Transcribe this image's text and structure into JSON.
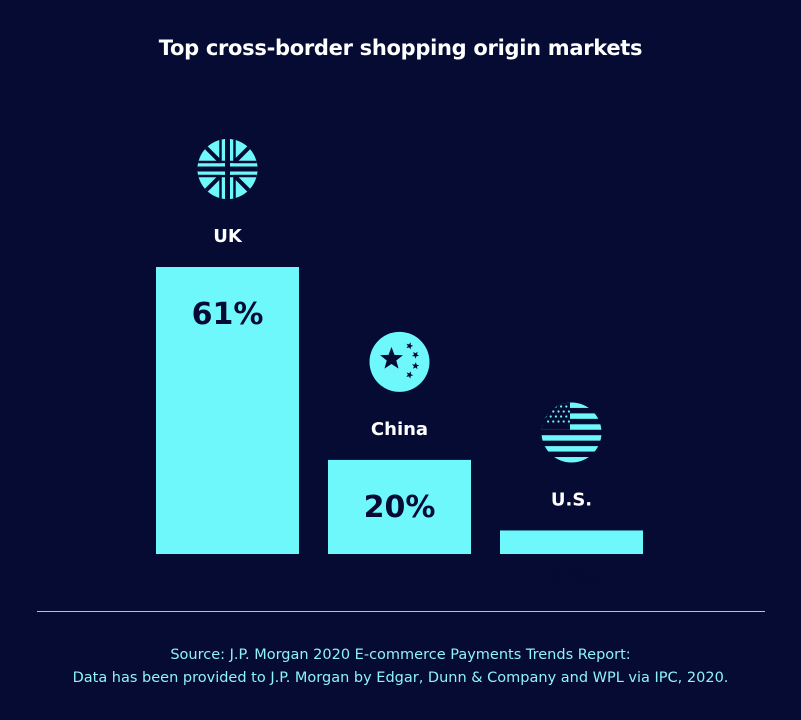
{
  "chart_data": {
    "type": "bar",
    "title": "Top cross-border shopping origin markets",
    "categories": [
      "UK",
      "China",
      "U.S."
    ],
    "values": [
      61,
      20,
      5
    ],
    "value_labels": [
      "61%",
      "20%",
      "5%"
    ],
    "category_icons": [
      "uk-flag-icon",
      "china-flag-icon",
      "us-flag-icon"
    ],
    "ylim": [
      0,
      61
    ],
    "grid": false,
    "xlabel": "",
    "ylabel": ""
  },
  "source": {
    "line1": "Source: J.P. Morgan 2020 E-commerce Payments Trends Report:",
    "line2": "Data has been provided to J.P. Morgan by Edgar, Dunn & Company and WPL via IPC, 2020."
  },
  "colors": {
    "background": "#050b33",
    "bar": "#6ff8fb",
    "bar_text": "#050b33",
    "label_text": "#ffffff",
    "source_text": "#8ff3f8",
    "divider": "#6fe3ea"
  }
}
